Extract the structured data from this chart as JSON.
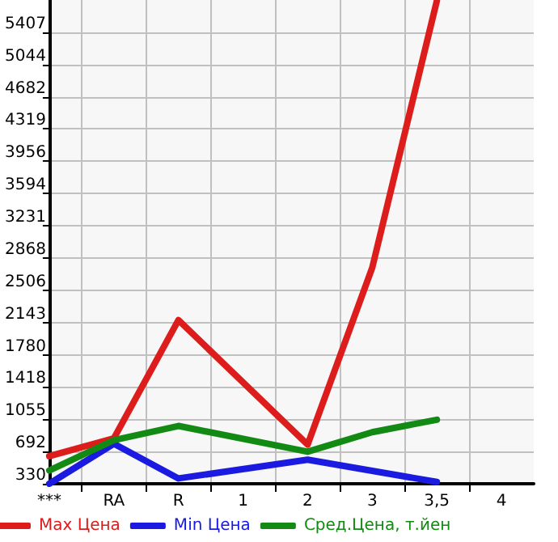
{
  "chart_data": {
    "type": "line",
    "categories": [
      "***",
      "RA",
      "R",
      "1",
      "2",
      "3",
      "3,5",
      "4"
    ],
    "series": [
      {
        "name": "Max Цена",
        "color": "#dd1c1c",
        "values": [
          640,
          840,
          2170,
          null,
          770,
          2760,
          5760,
          null
        ]
      },
      {
        "name": "Min Цена",
        "color": "#1a1ae0",
        "values": [
          330,
          780,
          390,
          null,
          600,
          null,
          350,
          null
        ]
      },
      {
        "name": "Сред.Цена, т.йен",
        "color": "#138a13",
        "values": [
          480,
          820,
          980,
          null,
          690,
          910,
          1050,
          null
        ]
      }
    ],
    "ylim": [
      330,
      5769
    ],
    "yticks": [
      330,
      692,
      1055,
      1418,
      1780,
      2143,
      2506,
      2868,
      3231,
      3594,
      3956,
      4319,
      4682,
      5044,
      5407
    ],
    "grid": true,
    "legend": "bottom",
    "marker": "none",
    "line_style": "solid"
  }
}
